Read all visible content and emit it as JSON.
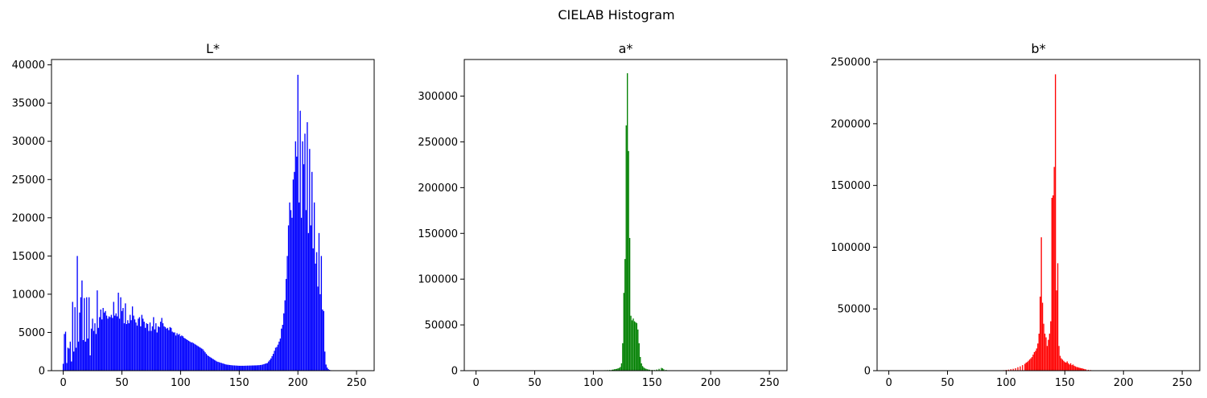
{
  "figure": {
    "suptitle": "CIELAB Histogram"
  },
  "chart_data": [
    {
      "type": "bar",
      "title": "L*",
      "color": "#0000ff",
      "xlabel": "",
      "ylabel": "",
      "xlim": [
        -10,
        265
      ],
      "ylim": [
        0,
        40700
      ],
      "xticks": [
        0,
        50,
        100,
        150,
        200,
        250
      ],
      "yticks": [
        0,
        5000,
        10000,
        15000,
        20000,
        25000,
        30000,
        35000,
        40000
      ],
      "grid": false,
      "bins": [
        [
          0,
          900
        ],
        [
          1,
          4800
        ],
        [
          2,
          5100
        ],
        [
          3,
          1000
        ],
        [
          4,
          3000
        ],
        [
          5,
          2900
        ],
        [
          6,
          3800
        ],
        [
          7,
          1200
        ],
        [
          8,
          9000
        ],
        [
          9,
          2500
        ],
        [
          10,
          8300
        ],
        [
          11,
          3000
        ],
        [
          12,
          15000
        ],
        [
          13,
          3800
        ],
        [
          14,
          7600
        ],
        [
          15,
          9600
        ],
        [
          16,
          11800
        ],
        [
          17,
          4000
        ],
        [
          18,
          9500
        ],
        [
          19,
          3800
        ],
        [
          20,
          9600
        ],
        [
          21,
          4200
        ],
        [
          22,
          9600
        ],
        [
          23,
          2000
        ],
        [
          24,
          5500
        ],
        [
          25,
          6800
        ],
        [
          26,
          5200
        ],
        [
          27,
          6200
        ],
        [
          28,
          4800
        ],
        [
          29,
          10500
        ],
        [
          30,
          5600
        ],
        [
          31,
          7000
        ],
        [
          32,
          8000
        ],
        [
          33,
          6700
        ],
        [
          34,
          8200
        ],
        [
          35,
          7600
        ],
        [
          36,
          7800
        ],
        [
          37,
          7200
        ],
        [
          38,
          6800
        ],
        [
          39,
          7100
        ],
        [
          40,
          7000
        ],
        [
          41,
          7300
        ],
        [
          42,
          6900
        ],
        [
          43,
          9000
        ],
        [
          44,
          7200
        ],
        [
          45,
          7500
        ],
        [
          46,
          7100
        ],
        [
          47,
          10200
        ],
        [
          48,
          6800
        ],
        [
          49,
          9600
        ],
        [
          50,
          7800
        ],
        [
          51,
          8200
        ],
        [
          52,
          6200
        ],
        [
          53,
          8800
        ],
        [
          54,
          6100
        ],
        [
          55,
          6600
        ],
        [
          56,
          6200
        ],
        [
          57,
          7300
        ],
        [
          58,
          6600
        ],
        [
          59,
          8400
        ],
        [
          60,
          7200
        ],
        [
          61,
          6700
        ],
        [
          62,
          6300
        ],
        [
          63,
          5900
        ],
        [
          64,
          6800
        ],
        [
          65,
          7000
        ],
        [
          66,
          5800
        ],
        [
          67,
          7300
        ],
        [
          68,
          6800
        ],
        [
          69,
          6400
        ],
        [
          70,
          5600
        ],
        [
          71,
          6200
        ],
        [
          72,
          6100
        ],
        [
          73,
          5200
        ],
        [
          74,
          6300
        ],
        [
          75,
          5200
        ],
        [
          76,
          5800
        ],
        [
          77,
          7000
        ],
        [
          78,
          5400
        ],
        [
          79,
          6200
        ],
        [
          80,
          5000
        ],
        [
          81,
          5800
        ],
        [
          82,
          5700
        ],
        [
          83,
          6400
        ],
        [
          84,
          6900
        ],
        [
          85,
          6200
        ],
        [
          86,
          5800
        ],
        [
          87,
          5700
        ],
        [
          88,
          5500
        ],
        [
          89,
          5600
        ],
        [
          90,
          5300
        ],
        [
          91,
          5700
        ],
        [
          92,
          5600
        ],
        [
          93,
          5100
        ],
        [
          94,
          5000
        ],
        [
          95,
          5000
        ],
        [
          96,
          4600
        ],
        [
          97,
          4900
        ],
        [
          98,
          4700
        ],
        [
          99,
          4800
        ],
        [
          100,
          4500
        ],
        [
          101,
          4600
        ],
        [
          102,
          4500
        ],
        [
          103,
          4300
        ],
        [
          104,
          4200
        ],
        [
          105,
          4100
        ],
        [
          106,
          4000
        ],
        [
          107,
          3900
        ],
        [
          108,
          3800
        ],
        [
          109,
          3700
        ],
        [
          110,
          3700
        ],
        [
          111,
          3600
        ],
        [
          112,
          3500
        ],
        [
          113,
          3400
        ],
        [
          114,
          3300
        ],
        [
          115,
          3200
        ],
        [
          116,
          3100
        ],
        [
          117,
          3000
        ],
        [
          118,
          2900
        ],
        [
          119,
          2800
        ],
        [
          120,
          2600
        ],
        [
          121,
          2400
        ],
        [
          122,
          2200
        ],
        [
          123,
          2000
        ],
        [
          124,
          1900
        ],
        [
          125,
          1800
        ],
        [
          126,
          1700
        ],
        [
          127,
          1600
        ],
        [
          128,
          1500
        ],
        [
          129,
          1400
        ],
        [
          130,
          1300
        ],
        [
          131,
          1200
        ],
        [
          132,
          1150
        ],
        [
          133,
          1100
        ],
        [
          134,
          1050
        ],
        [
          135,
          1000
        ],
        [
          136,
          950
        ],
        [
          137,
          900
        ],
        [
          138,
          850
        ],
        [
          139,
          800
        ],
        [
          140,
          780
        ],
        [
          141,
          760
        ],
        [
          142,
          740
        ],
        [
          143,
          720
        ],
        [
          144,
          700
        ],
        [
          145,
          690
        ],
        [
          146,
          680
        ],
        [
          147,
          670
        ],
        [
          148,
          660
        ],
        [
          149,
          650
        ],
        [
          150,
          640
        ],
        [
          151,
          640
        ],
        [
          152,
          640
        ],
        [
          153,
          640
        ],
        [
          154,
          640
        ],
        [
          155,
          650
        ],
        [
          156,
          650
        ],
        [
          157,
          660
        ],
        [
          158,
          660
        ],
        [
          159,
          670
        ],
        [
          160,
          670
        ],
        [
          161,
          680
        ],
        [
          162,
          680
        ],
        [
          163,
          690
        ],
        [
          164,
          690
        ],
        [
          165,
          700
        ],
        [
          166,
          710
        ],
        [
          167,
          720
        ],
        [
          168,
          740
        ],
        [
          169,
          760
        ],
        [
          170,
          800
        ],
        [
          171,
          850
        ],
        [
          172,
          900
        ],
        [
          173,
          950
        ],
        [
          174,
          1000
        ],
        [
          175,
          1200
        ],
        [
          176,
          1400
        ],
        [
          177,
          1600
        ],
        [
          178,
          1900
        ],
        [
          179,
          2200
        ],
        [
          180,
          2600
        ],
        [
          181,
          3000
        ],
        [
          182,
          3100
        ],
        [
          183,
          3400
        ],
        [
          184,
          3800
        ],
        [
          185,
          4200
        ],
        [
          186,
          5500
        ],
        [
          187,
          6000
        ],
        [
          188,
          7500
        ],
        [
          189,
          9200
        ],
        [
          190,
          12000
        ],
        [
          191,
          15000
        ],
        [
          192,
          19000
        ],
        [
          193,
          22000
        ],
        [
          194,
          21000
        ],
        [
          195,
          20000
        ],
        [
          196,
          25000
        ],
        [
          197,
          26000
        ],
        [
          198,
          30000
        ],
        [
          199,
          28000
        ],
        [
          200,
          38700
        ],
        [
          201,
          22000
        ],
        [
          202,
          34000
        ],
        [
          203,
          20000
        ],
        [
          204,
          30000
        ],
        [
          205,
          27000
        ],
        [
          206,
          31000
        ],
        [
          207,
          21000
        ],
        [
          208,
          32500
        ],
        [
          209,
          18000
        ],
        [
          210,
          29000
        ],
        [
          211,
          19000
        ],
        [
          212,
          26000
        ],
        [
          213,
          16000
        ],
        [
          214,
          22000
        ],
        [
          215,
          14000
        ],
        [
          216,
          15500
        ],
        [
          217,
          11000
        ],
        [
          218,
          18000
        ],
        [
          219,
          10000
        ],
        [
          220,
          15000
        ],
        [
          221,
          8000
        ],
        [
          222,
          7800
        ],
        [
          223,
          2500
        ],
        [
          224,
          800
        ],
        [
          225,
          400
        ],
        [
          226,
          200
        ],
        [
          227,
          100
        ],
        [
          228,
          60
        ],
        [
          229,
          40
        ],
        [
          230,
          30
        ],
        [
          231,
          20
        ],
        [
          232,
          10
        ],
        [
          233,
          5
        ],
        [
          234,
          5
        ],
        [
          235,
          3
        ]
      ]
    },
    {
      "type": "bar",
      "title": "a*",
      "color": "#008000",
      "xlabel": "",
      "ylabel": "",
      "xlim": [
        -10,
        265
      ],
      "ylim": [
        0,
        340000
      ],
      "xticks": [
        0,
        50,
        100,
        150,
        200,
        250
      ],
      "yticks": [
        0,
        50000,
        100000,
        150000,
        200000,
        250000,
        300000
      ],
      "grid": false,
      "bins": [
        [
          100,
          100
        ],
        [
          102,
          150
        ],
        [
          104,
          200
        ],
        [
          106,
          300
        ],
        [
          108,
          400
        ],
        [
          110,
          500
        ],
        [
          112,
          600
        ],
        [
          114,
          800
        ],
        [
          116,
          1000
        ],
        [
          117,
          1200
        ],
        [
          118,
          1500
        ],
        [
          119,
          1800
        ],
        [
          120,
          2000
        ],
        [
          121,
          2500
        ],
        [
          122,
          3000
        ],
        [
          123,
          4000
        ],
        [
          124,
          8000
        ],
        [
          125,
          30000
        ],
        [
          126,
          85000
        ],
        [
          127,
          122000
        ],
        [
          128,
          268000
        ],
        [
          129,
          325000
        ],
        [
          130,
          240000
        ],
        [
          131,
          145000
        ],
        [
          132,
          60000
        ],
        [
          133,
          55000
        ],
        [
          134,
          57000
        ],
        [
          135,
          54000
        ],
        [
          136,
          53000
        ],
        [
          137,
          52000
        ],
        [
          138,
          45000
        ],
        [
          139,
          30000
        ],
        [
          140,
          15000
        ],
        [
          141,
          8000
        ],
        [
          142,
          5000
        ],
        [
          143,
          3500
        ],
        [
          144,
          2500
        ],
        [
          145,
          2000
        ],
        [
          146,
          1500
        ],
        [
          147,
          1200
        ],
        [
          148,
          1000
        ],
        [
          150,
          800
        ],
        [
          152,
          700
        ],
        [
          154,
          1200
        ],
        [
          156,
          2000
        ],
        [
          158,
          3000
        ],
        [
          159,
          2500
        ],
        [
          160,
          1500
        ],
        [
          162,
          800
        ],
        [
          164,
          400
        ],
        [
          166,
          200
        ],
        [
          170,
          100
        ]
      ]
    },
    {
      "type": "bar",
      "title": "b*",
      "color": "#ff0000",
      "xlabel": "",
      "ylabel": "",
      "xlim": [
        -10,
        265
      ],
      "ylim": [
        0,
        252000
      ],
      "xticks": [
        0,
        50,
        100,
        150,
        200,
        250
      ],
      "yticks": [
        0,
        50000,
        100000,
        150000,
        200000,
        250000
      ],
      "grid": false,
      "bins": [
        [
          95,
          200
        ],
        [
          98,
          400
        ],
        [
          100,
          600
        ],
        [
          102,
          800
        ],
        [
          104,
          1200
        ],
        [
          106,
          1500
        ],
        [
          108,
          2000
        ],
        [
          110,
          2800
        ],
        [
          112,
          3500
        ],
        [
          114,
          4500
        ],
        [
          116,
          5500
        ],
        [
          117,
          6500
        ],
        [
          118,
          7000
        ],
        [
          119,
          8000
        ],
        [
          120,
          9000
        ],
        [
          121,
          10000
        ],
        [
          122,
          11000
        ],
        [
          123,
          13000
        ],
        [
          124,
          15000
        ],
        [
          125,
          16000
        ],
        [
          126,
          18000
        ],
        [
          127,
          22000
        ],
        [
          128,
          30000
        ],
        [
          129,
          60000
        ],
        [
          130,
          108000
        ],
        [
          131,
          55000
        ],
        [
          132,
          38000
        ],
        [
          133,
          30000
        ],
        [
          134,
          27000
        ],
        [
          135,
          20000
        ],
        [
          136,
          25000
        ],
        [
          137,
          30000
        ],
        [
          138,
          40000
        ],
        [
          139,
          140000
        ],
        [
          140,
          142000
        ],
        [
          141,
          165000
        ],
        [
          142,
          240000
        ],
        [
          143,
          65000
        ],
        [
          144,
          87000
        ],
        [
          145,
          20000
        ],
        [
          146,
          12000
        ],
        [
          147,
          10000
        ],
        [
          148,
          9000
        ],
        [
          149,
          8000
        ],
        [
          150,
          7000
        ],
        [
          151,
          6500
        ],
        [
          152,
          7500
        ],
        [
          153,
          6000
        ],
        [
          154,
          5000
        ],
        [
          155,
          6000
        ],
        [
          156,
          4500
        ],
        [
          157,
          5000
        ],
        [
          158,
          4000
        ],
        [
          159,
          3500
        ],
        [
          160,
          3000
        ],
        [
          161,
          2800
        ],
        [
          162,
          2500
        ],
        [
          163,
          2200
        ],
        [
          164,
          2000
        ],
        [
          165,
          1800
        ],
        [
          166,
          1500
        ],
        [
          167,
          1200
        ],
        [
          168,
          1000
        ],
        [
          170,
          700
        ],
        [
          172,
          500
        ],
        [
          175,
          300
        ],
        [
          178,
          200
        ],
        [
          182,
          100
        ]
      ]
    }
  ]
}
